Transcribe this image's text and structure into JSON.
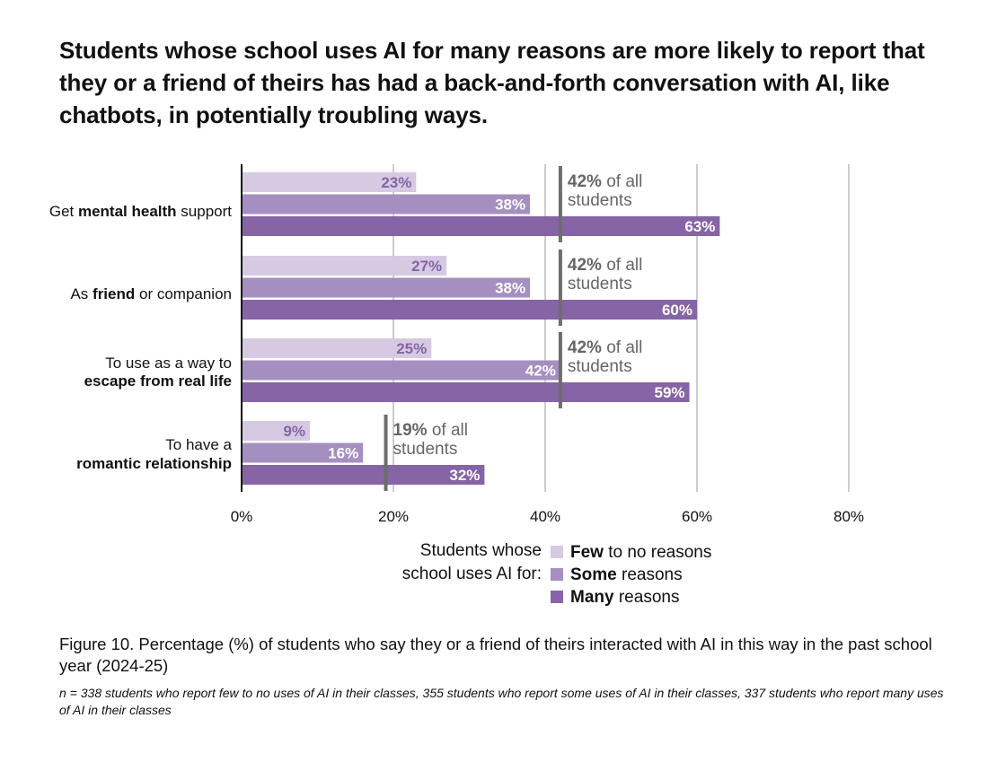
{
  "title": "Students whose school uses AI for many reasons are more likely to report that they or a friend of theirs has had a back-and-forth conversation with AI, like chatbots, in potentially troubling ways.",
  "caption": "Figure 10. Percentage (%) of students who say they or a friend of theirs interacted with AI in this way in the past school year (2024-25)",
  "note": "n = 338 students who report few to no uses of AI in their classes, 355 students who report some uses of AI in their classes, 337 students who report many uses of AI in their classes",
  "colors": {
    "few": "#d6cae3",
    "some": "#a58fc0",
    "many": "#8664a5",
    "ref_line": "#6d6d6d",
    "grid": "#9a9a9a"
  },
  "chart_data": {
    "type": "bar",
    "orientation": "horizontal",
    "categories": [
      [
        {
          "t": "Get ",
          "b": false
        },
        {
          "t": "mental health",
          "b": true
        },
        {
          "t": " support",
          "b": false
        }
      ],
      [
        {
          "t": "As ",
          "b": false
        },
        {
          "t": "friend",
          "b": true
        },
        {
          "t": " or companion",
          "b": false
        }
      ],
      [
        {
          "t": "To use as a way to",
          "b": false
        },
        {
          "t": "escape from real life",
          "b": true
        }
      ],
      [
        {
          "t": "To have a",
          "b": false
        },
        {
          "t": "romantic relationship",
          "b": true
        }
      ]
    ],
    "category_lines": [
      [
        [
          0,
          1,
          2
        ]
      ],
      [
        [
          0,
          1,
          2
        ]
      ],
      [
        [
          0
        ],
        [
          1
        ]
      ],
      [
        [
          0
        ],
        [
          1
        ]
      ]
    ],
    "series": [
      {
        "name": "Few to no reasons",
        "values": [
          23,
          27,
          25,
          9
        ],
        "labels": [
          "23%",
          "27%",
          "25%",
          "9%"
        ]
      },
      {
        "name": "Some reasons",
        "values": [
          38,
          38,
          42,
          16
        ],
        "labels": [
          "38%",
          "38%",
          "42%",
          "16%"
        ]
      },
      {
        "name": "Many reasons",
        "values": [
          63,
          60,
          59,
          32
        ],
        "labels": [
          "63%",
          "60%",
          "59%",
          "32%"
        ]
      }
    ],
    "reference": [
      {
        "value": 42,
        "pct": "42%",
        "text": " of all",
        "text2": "students"
      },
      {
        "value": 42,
        "pct": "42%",
        "text": " of all",
        "text2": "students"
      },
      {
        "value": 42,
        "pct": "42%",
        "text": " of all",
        "text2": "students"
      },
      {
        "value": 19,
        "pct": "19%",
        "text": " of all",
        "text2": "students"
      }
    ],
    "xlim": [
      0,
      80
    ],
    "xticks": [
      0,
      20,
      40,
      60,
      80
    ],
    "xtick_labels": [
      "0%",
      "20%",
      "40%",
      "60%",
      "80%"
    ],
    "legend": {
      "title_line1": "Students whose",
      "title_line2": "school uses AI for:",
      "items": [
        {
          "bold": "Few",
          "rest": " to no reasons"
        },
        {
          "bold": "Some",
          "rest": " reasons"
        },
        {
          "bold": "Many",
          "rest": " reasons"
        }
      ]
    }
  }
}
